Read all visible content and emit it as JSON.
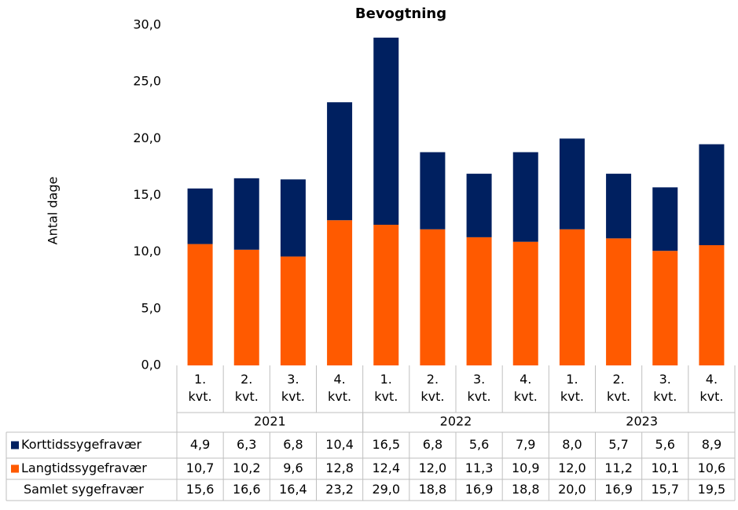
{
  "chart_data": {
    "type": "stacked_bar",
    "title": "Bevogtning",
    "ylabel": "Antal dage",
    "categories": [
      "1. kvt.",
      "2. kvt.",
      "3. kvt.",
      "4. kvt.",
      "1. kvt.",
      "2. kvt.",
      "3. kvt.",
      "4. kvt.",
      "1. kvt.",
      "2. kvt.",
      "3. kvt.",
      "4. kvt."
    ],
    "year_groups": [
      "2021",
      "2022",
      "2023"
    ],
    "series": [
      {
        "name": "Korttidssygefravær",
        "color": "#002060",
        "values": [
          4.9,
          6.3,
          6.8,
          10.4,
          16.5,
          6.8,
          5.6,
          7.9,
          8.0,
          5.7,
          5.6,
          8.9
        ],
        "value_labels": [
          "4,9",
          "6,3",
          "6,8",
          "10,4",
          "16,5",
          "6,8",
          "5,6",
          "7,9",
          "8,0",
          "5,7",
          "5,6",
          "8,9"
        ]
      },
      {
        "name": "Langtidssygefravær",
        "color": "#ff5a00",
        "values": [
          10.7,
          10.2,
          9.6,
          12.8,
          12.4,
          12.0,
          11.3,
          10.9,
          12.0,
          11.2,
          10.1,
          10.6
        ],
        "value_labels": [
          "10,7",
          "10,2",
          "9,6",
          "12,8",
          "12,4",
          "12,0",
          "11,3",
          "10,9",
          "12,0",
          "11,2",
          "10,1",
          "10,6"
        ]
      }
    ],
    "total": {
      "name": "Samlet sygefravær",
      "values": [
        15.6,
        16.6,
        16.4,
        23.2,
        29.0,
        18.8,
        16.9,
        18.8,
        20.0,
        16.9,
        15.7,
        19.5
      ],
      "value_labels": [
        "15,6",
        "16,6",
        "16,4",
        "23,2",
        "29,0",
        "18,8",
        "16,9",
        "18,8",
        "20,0",
        "16,9",
        "15,7",
        "19,5"
      ]
    },
    "ylim": [
      0,
      30
    ],
    "yticks": [
      {
        "value": 0,
        "label": "0,0"
      },
      {
        "value": 5,
        "label": "5,0"
      },
      {
        "value": 10,
        "label": "10,0"
      },
      {
        "value": 15,
        "label": "15,0"
      },
      {
        "value": 20,
        "label": "20,0"
      },
      {
        "value": 25,
        "label": "25,0"
      },
      {
        "value": 30,
        "label": "30,0"
      }
    ]
  }
}
